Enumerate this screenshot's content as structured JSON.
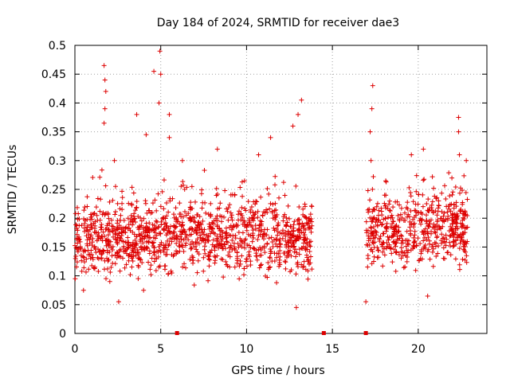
{
  "chart_data": {
    "type": "scatter",
    "title": "Day 184 of 2024, SRMTID for receiver dae3",
    "xlabel": "GPS time / hours",
    "ylabel": "SRMTID / TECUs",
    "xlim": [
      0,
      24
    ],
    "ylim": [
      0,
      0.5
    ],
    "x_ticks": [
      0,
      5,
      10,
      15,
      20
    ],
    "x_tick_labels": [
      "0",
      "5",
      "10",
      "15",
      "20"
    ],
    "y_ticks": [
      0,
      0.05,
      0.1,
      0.15,
      0.2,
      0.25,
      0.3,
      0.35,
      0.4,
      0.45,
      0.5
    ],
    "y_tick_labels": [
      "0",
      "0.05",
      "0.1",
      "0.15",
      "0.2",
      "0.25",
      "0.3",
      "0.35",
      "0.4",
      "0.45",
      "0.5"
    ],
    "grid": true,
    "marker": "+",
    "marker_color": "#dd0000",
    "zero_markers": [
      {
        "x": 5.95,
        "y": 0
      },
      {
        "x": 14.5,
        "y": 0
      },
      {
        "x": 16.95,
        "y": 0
      }
    ],
    "series": [
      {
        "name": "SRMTID",
        "segments": [
          {
            "x_start": 0.0,
            "x_end": 13.85,
            "base": 0.165,
            "spread": 0.05
          },
          {
            "x_start": 16.95,
            "x_end": 22.9,
            "base": 0.18,
            "spread": 0.05
          }
        ],
        "peaks": [
          {
            "x": 1.7,
            "y": 0.465
          },
          {
            "x": 1.75,
            "y": 0.44
          },
          {
            "x": 1.8,
            "y": 0.42
          },
          {
            "x": 1.75,
            "y": 0.39
          },
          {
            "x": 1.7,
            "y": 0.365
          },
          {
            "x": 2.3,
            "y": 0.3
          },
          {
            "x": 3.6,
            "y": 0.38
          },
          {
            "x": 4.15,
            "y": 0.345
          },
          {
            "x": 4.6,
            "y": 0.455
          },
          {
            "x": 4.95,
            "y": 0.49
          },
          {
            "x": 5.0,
            "y": 0.45
          },
          {
            "x": 4.9,
            "y": 0.4
          },
          {
            "x": 5.5,
            "y": 0.38
          },
          {
            "x": 5.5,
            "y": 0.34
          },
          {
            "x": 8.3,
            "y": 0.32
          },
          {
            "x": 10.7,
            "y": 0.31
          },
          {
            "x": 11.4,
            "y": 0.34
          },
          {
            "x": 12.7,
            "y": 0.36
          },
          {
            "x": 13.0,
            "y": 0.38
          },
          {
            "x": 13.2,
            "y": 0.405
          },
          {
            "x": 17.35,
            "y": 0.43
          },
          {
            "x": 17.3,
            "y": 0.39
          },
          {
            "x": 17.2,
            "y": 0.35
          },
          {
            "x": 17.25,
            "y": 0.3
          },
          {
            "x": 19.6,
            "y": 0.31
          },
          {
            "x": 20.3,
            "y": 0.32
          },
          {
            "x": 22.35,
            "y": 0.375
          },
          {
            "x": 22.35,
            "y": 0.35
          },
          {
            "x": 22.4,
            "y": 0.31
          },
          {
            "x": 22.8,
            "y": 0.3
          }
        ],
        "lows": [
          {
            "x": 0.5,
            "y": 0.075
          },
          {
            "x": 2.55,
            "y": 0.055
          },
          {
            "x": 4.0,
            "y": 0.075
          },
          {
            "x": 12.9,
            "y": 0.045
          },
          {
            "x": 16.95,
            "y": 0.055
          },
          {
            "x": 20.55,
            "y": 0.065
          }
        ]
      }
    ]
  }
}
